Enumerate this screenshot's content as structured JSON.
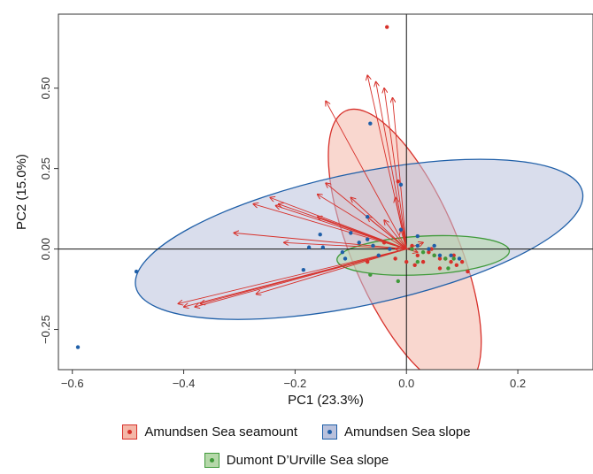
{
  "chart_data": {
    "type": "scatter",
    "title": "",
    "xlabel": "PC1 (23.3%)",
    "ylabel": "PC2 (15.0%)",
    "xlim": [
      -0.625,
      0.335
    ],
    "ylim": [
      -0.375,
      0.73
    ],
    "xticks": [
      -0.6,
      -0.4,
      -0.2,
      0.0,
      0.2
    ],
    "xtick_labels": [
      "−0.6",
      "−0.4",
      "−0.2",
      "0.0",
      "0.2"
    ],
    "yticks": [
      -0.25,
      0.0,
      0.25,
      0.5
    ],
    "ytick_labels": [
      "−0.25",
      "0.00",
      "0.25",
      "0.50"
    ],
    "reference_lines": {
      "x": 0,
      "y": 0
    },
    "legend_position": "bottom",
    "colors": {
      "seamount": "#d7302a",
      "slope": "#1f5fa8",
      "dumont": "#3f9a3a",
      "arrow": "#d7302a"
    },
    "series": [
      {
        "name": "Amundsen Sea seamount",
        "key": "seamount",
        "fill": "#f4b7a8",
        "stroke": "#d7302a",
        "ellipse": {
          "cx": -0.003,
          "cy": 0.0,
          "rx": 0.27,
          "ry": 0.165,
          "angle_deg": -67
        },
        "points": [
          [
            -0.035,
            0.69
          ],
          [
            -0.015,
            0.21
          ],
          [
            -0.06,
            0.01
          ],
          [
            -0.07,
            -0.04
          ],
          [
            0.01,
            0.01
          ],
          [
            0.02,
            -0.02
          ],
          [
            0.04,
            -0.01
          ],
          [
            0.05,
            -0.02
          ],
          [
            0.06,
            -0.03
          ],
          [
            0.07,
            -0.03
          ],
          [
            0.08,
            -0.04
          ],
          [
            0.09,
            -0.05
          ],
          [
            0.1,
            -0.04
          ],
          [
            0.11,
            -0.07
          ],
          [
            0.045,
            0.0
          ],
          [
            0.03,
            -0.04
          ],
          [
            0.015,
            -0.05
          ],
          [
            -0.02,
            -0.03
          ],
          [
            0.06,
            -0.06
          ],
          [
            0.085,
            -0.02
          ],
          [
            0.0,
            -0.04
          ],
          [
            -0.04,
            0.02
          ]
        ]
      },
      {
        "name": "Amundsen Sea slope",
        "key": "slope",
        "fill": "#b9c1dc",
        "stroke": "#1f5fa8",
        "ellipse": {
          "cx": -0.085,
          "cy": 0.03,
          "rx": 0.41,
          "ry": 0.205,
          "angle_deg": 12
        },
        "points": [
          [
            -0.59,
            -0.305
          ],
          [
            -0.485,
            -0.07
          ],
          [
            -0.185,
            -0.065
          ],
          [
            -0.155,
            0.045
          ],
          [
            -0.15,
            0.005
          ],
          [
            -0.175,
            0.005
          ],
          [
            -0.115,
            -0.01
          ],
          [
            -0.11,
            -0.03
          ],
          [
            -0.1,
            0.05
          ],
          [
            -0.085,
            0.02
          ],
          [
            -0.07,
            0.03
          ],
          [
            -0.065,
            0.39
          ],
          [
            -0.07,
            0.1
          ],
          [
            -0.06,
            0.01
          ],
          [
            -0.05,
            -0.02
          ],
          [
            -0.03,
            0.0
          ],
          [
            -0.01,
            0.2
          ],
          [
            -0.01,
            0.06
          ],
          [
            0.02,
            0.04
          ],
          [
            0.02,
            0.01
          ],
          [
            0.04,
            0.0
          ],
          [
            0.06,
            -0.02
          ],
          [
            0.08,
            -0.02
          ],
          [
            0.095,
            -0.03
          ],
          [
            0.05,
            0.01
          ]
        ]
      },
      {
        "name": "Dumont D’Urville Sea slope",
        "key": "dumont",
        "fill": "#b5d8a9",
        "stroke": "#3f9a3a",
        "ellipse": {
          "cx": 0.03,
          "cy": -0.02,
          "rx": 0.155,
          "ry": 0.06,
          "angle_deg": 3
        },
        "points": [
          [
            -0.015,
            -0.1
          ],
          [
            0.01,
            0.0
          ],
          [
            0.03,
            -0.01
          ],
          [
            0.05,
            -0.02
          ],
          [
            0.07,
            -0.03
          ],
          [
            0.075,
            -0.06
          ],
          [
            0.085,
            -0.03
          ],
          [
            -0.065,
            -0.08
          ],
          [
            0.02,
            -0.04
          ]
        ]
      }
    ],
    "arrows": [
      [
        -0.41,
        -0.17
      ],
      [
        -0.4,
        -0.18
      ],
      [
        -0.38,
        -0.18
      ],
      [
        -0.37,
        -0.17
      ],
      [
        -0.27,
        -0.14
      ],
      [
        -0.31,
        0.05
      ],
      [
        -0.22,
        0.02
      ],
      [
        -0.245,
        0.16
      ],
      [
        -0.275,
        0.14
      ],
      [
        -0.235,
        0.135
      ],
      [
        -0.23,
        0.14
      ],
      [
        -0.16,
        0.17
      ],
      [
        -0.145,
        0.205
      ],
      [
        -0.16,
        0.1
      ],
      [
        -0.07,
        0.1
      ],
      [
        -0.04,
        0.09
      ],
      [
        -0.1,
        0.16
      ],
      [
        -0.145,
        0.46
      ],
      [
        -0.07,
        0.54
      ],
      [
        -0.055,
        0.52
      ],
      [
        -0.04,
        0.5
      ],
      [
        -0.025,
        0.47
      ],
      [
        -0.02,
        0.16
      ],
      [
        -0.01,
        0.06
      ],
      [
        -0.02,
        0.0
      ],
      [
        0.02,
        -0.01
      ],
      [
        0.03,
        0.02
      ]
    ]
  },
  "legend": {
    "items": [
      {
        "label": "Amundsen Sea seamount",
        "key": "seamount"
      },
      {
        "label": "Amundsen Sea slope",
        "key": "slope"
      },
      {
        "label": "Dumont D’Urville Sea slope",
        "key": "dumont"
      }
    ]
  }
}
